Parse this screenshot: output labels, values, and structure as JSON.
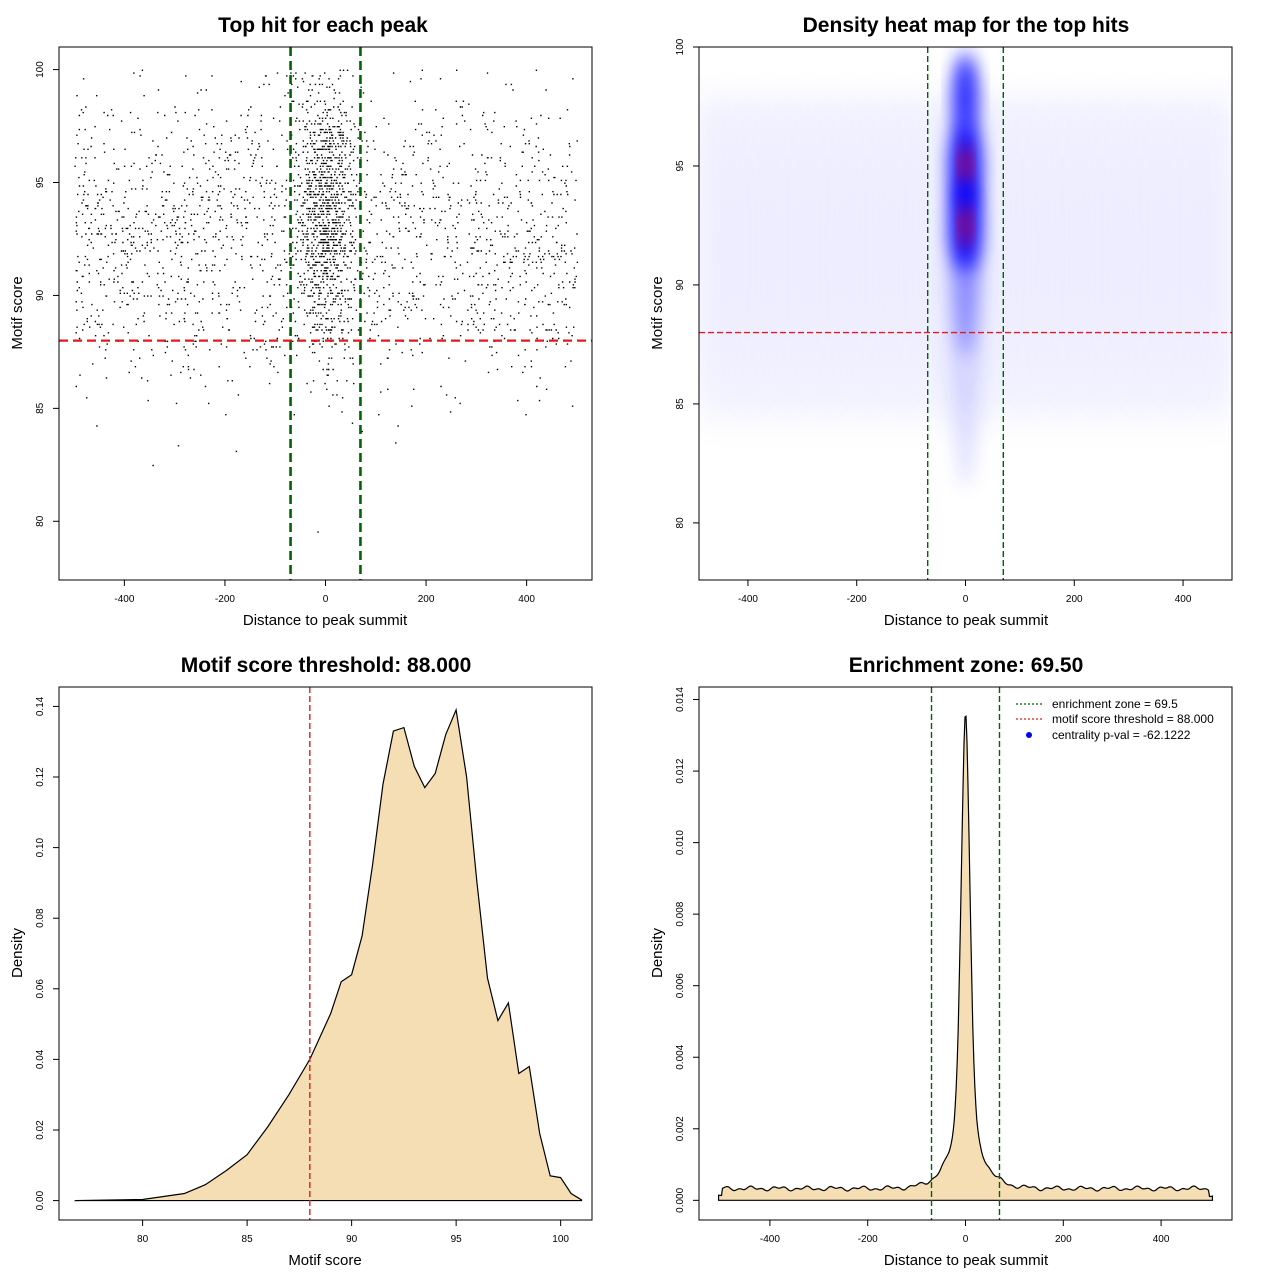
{
  "colors": {
    "green": "#006400",
    "red": "#e31a1c",
    "fill": "#f5deb3",
    "heat_blue": "#0000ff",
    "heat_red": "#ff0000"
  },
  "chart_data": [
    {
      "id": "scatter",
      "type": "scatter",
      "title": "Top hit for each peak",
      "xlabel": "Distance to peak summit",
      "ylabel": "Motif score",
      "xlim": [
        -530,
        530
      ],
      "ylim": [
        77.4,
        101.0
      ],
      "xticks": [
        -400,
        -200,
        0,
        200,
        400
      ],
      "xtick_labels": [
        "-400",
        "-200",
        "0",
        "200",
        "400"
      ],
      "yticks": [
        80,
        85,
        90,
        95,
        100
      ],
      "ytick_labels": [
        "80",
        "85",
        "90",
        "95",
        "100"
      ],
      "vlines": [
        -69.5,
        69.5
      ],
      "hline": 88.0,
      "point_distribution": {
        "x_range": [
          -500,
          500
        ],
        "central_sd": 28,
        "score_mean": 92.5,
        "score_sd": 3.2,
        "approx_points": 12000
      }
    },
    {
      "id": "heatmap",
      "type": "heatmap",
      "title": "Density heat map for the top hits",
      "xlabel": "Distance to peak summit",
      "ylabel": "Motif score",
      "xlim": [
        -490,
        490
      ],
      "ylim": [
        77.6,
        100.0
      ],
      "xticks": [
        -400,
        -200,
        0,
        200,
        400
      ],
      "xtick_labels": [
        "-400",
        "-200",
        "0",
        "200",
        "400"
      ],
      "yticks": [
        80,
        85,
        90,
        95,
        100
      ],
      "ytick_labels": [
        "80",
        "85",
        "90",
        "95",
        "100"
      ],
      "vlines": [
        -69.5,
        69.5
      ],
      "hline": 88.0,
      "hotspots": [
        {
          "x": 0,
          "y": 95.0,
          "level": "high"
        },
        {
          "x": 0,
          "y": 92.5,
          "level": "high"
        },
        {
          "x": 0,
          "y": 98.0,
          "level": "medium"
        }
      ]
    },
    {
      "id": "score-density",
      "type": "area",
      "title": "Motif score threshold: 88.000",
      "xlabel": "Motif score",
      "ylabel": "Density",
      "xlim": [
        76.0,
        101.5
      ],
      "ylim": [
        -0.0055,
        0.1455
      ],
      "xticks": [
        80,
        85,
        90,
        95,
        100
      ],
      "xtick_labels": [
        "80",
        "85",
        "90",
        "95",
        "100"
      ],
      "yticks": [
        0,
        0.02,
        0.04,
        0.06,
        0.08,
        0.1,
        0.12,
        0.14
      ],
      "ytick_labels": [
        "0.00",
        "0.02",
        "0.04",
        "0.06",
        "0.08",
        "0.10",
        "0.12",
        "0.14"
      ],
      "vline": 88.0,
      "x": [
        76.8,
        80,
        82,
        83,
        84,
        85,
        86,
        87,
        88,
        89,
        89.5,
        90,
        90.5,
        91,
        91.5,
        92,
        92.5,
        93,
        93.5,
        94,
        94.5,
        95,
        95.5,
        96,
        96.5,
        97,
        97.5,
        98,
        98.5,
        99,
        99.5,
        100,
        100.5,
        101
      ],
      "y": [
        0.0,
        0.0003,
        0.002,
        0.0045,
        0.0085,
        0.013,
        0.021,
        0.03,
        0.04,
        0.053,
        0.062,
        0.064,
        0.075,
        0.095,
        0.118,
        0.133,
        0.134,
        0.123,
        0.117,
        0.121,
        0.132,
        0.139,
        0.12,
        0.09,
        0.063,
        0.051,
        0.056,
        0.036,
        0.038,
        0.019,
        0.007,
        0.0065,
        0.002,
        0.0002
      ]
    },
    {
      "id": "distance-density",
      "type": "area",
      "title": "Enrichment zone: 69.50",
      "xlabel": "Distance to peak summit",
      "ylabel": "Density",
      "xlim": [
        -545,
        545
      ],
      "ylim": [
        -0.00055,
        0.01435
      ],
      "xticks": [
        -400,
        -200,
        0,
        200,
        400
      ],
      "xtick_labels": [
        "-400",
        "-200",
        "0",
        "200",
        "400"
      ],
      "yticks": [
        0,
        0.002,
        0.004,
        0.006,
        0.008,
        0.01,
        0.012,
        0.014
      ],
      "ytick_labels": [
        "0.000",
        "0.002",
        "0.004",
        "0.006",
        "0.008",
        "0.010",
        "0.012",
        "0.014"
      ],
      "vlines": [
        -69.5,
        69.5
      ],
      "peak": {
        "x": 0,
        "y": 0.0137
      },
      "baseline_density": 0.00033,
      "x_range": [
        -505,
        505
      ],
      "legend": [
        {
          "label": "enrichment zone = 69.5",
          "style": "green-dotted"
        },
        {
          "label": "motif score threshold = 88.000",
          "style": "red-dotted"
        },
        {
          "label": "centrality p-val = -62.1222",
          "style": "blue-dot"
        }
      ]
    }
  ]
}
